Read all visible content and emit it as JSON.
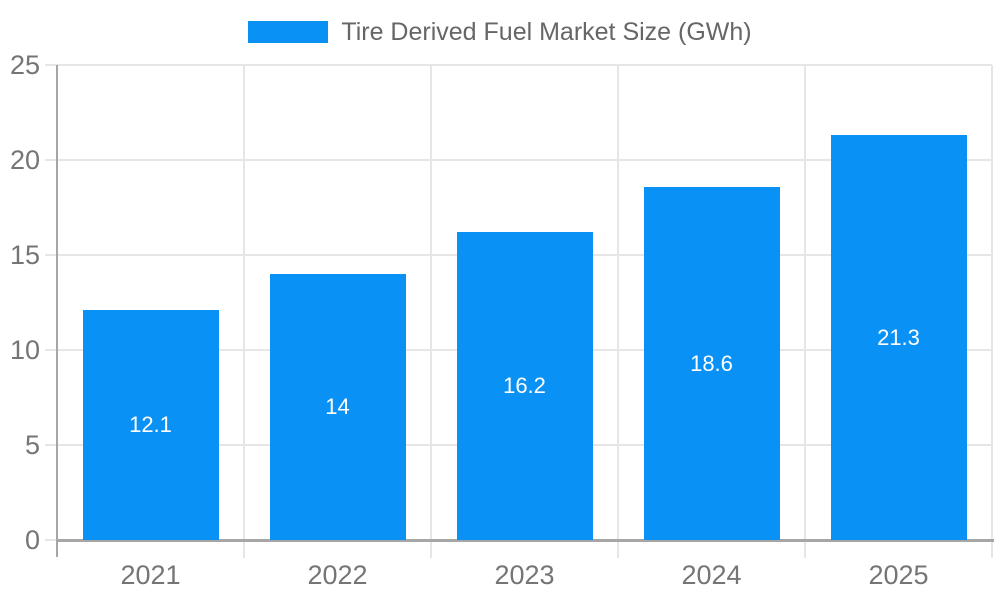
{
  "legend": {
    "label": "Tire Derived Fuel Market Size (GWh)"
  },
  "chart_data": {
    "type": "bar",
    "title": "Tire Derived Fuel Market Size (GWh)",
    "categories": [
      "2021",
      "2022",
      "2023",
      "2024",
      "2025"
    ],
    "values": [
      12.1,
      14,
      16.2,
      18.6,
      21.3
    ],
    "value_labels": [
      "12.1",
      "14",
      "16.2",
      "18.6",
      "21.3"
    ],
    "xlabel": "",
    "ylabel": "",
    "ylim": [
      0,
      25
    ],
    "yticks": [
      0,
      5,
      10,
      15,
      20,
      25
    ],
    "grid": true,
    "legend_position": "top-center",
    "colors": {
      "bar": "#0A91F5",
      "bar_label": "#FFFFFF",
      "axis_line": "#A6A6A6",
      "grid_line": "#E6E6E6",
      "tick_label": "#757575",
      "legend_text": "#666666",
      "background": "#FFFFFF"
    }
  }
}
